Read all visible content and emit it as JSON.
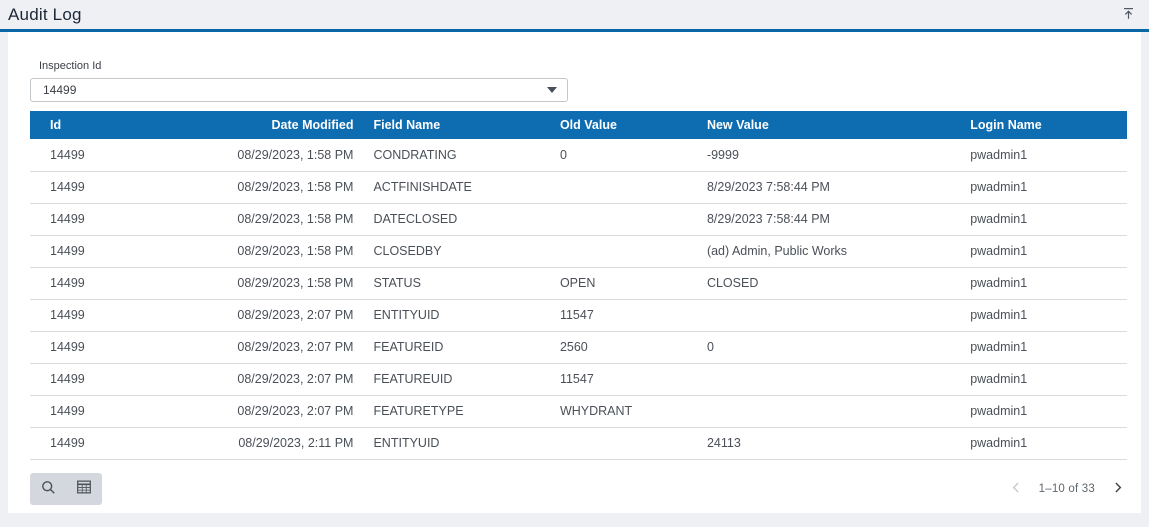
{
  "page": {
    "title": "Audit Log"
  },
  "filter": {
    "label": "Inspection Id",
    "value": "14499"
  },
  "table": {
    "columns": [
      {
        "key": "id",
        "label": "Id"
      },
      {
        "key": "date-modified",
        "label": "Date Modified"
      },
      {
        "key": "field-name",
        "label": "Field Name"
      },
      {
        "key": "old-value",
        "label": "Old Value"
      },
      {
        "key": "new-value",
        "label": "New Value"
      },
      {
        "key": "login-name",
        "label": "Login Name"
      }
    ],
    "rows": [
      [
        "14499",
        "08/29/2023, 1:58 PM",
        "CONDRATING",
        "0",
        "-9999",
        "pwadmin1"
      ],
      [
        "14499",
        "08/29/2023, 1:58 PM",
        "ACTFINISHDATE",
        "",
        "8/29/2023 7:58:44 PM",
        "pwadmin1"
      ],
      [
        "14499",
        "08/29/2023, 1:58 PM",
        "DATECLOSED",
        "",
        "8/29/2023 7:58:44 PM",
        "pwadmin1"
      ],
      [
        "14499",
        "08/29/2023, 1:58 PM",
        "CLOSEDBY",
        "",
        "(ad) Admin, Public Works",
        "pwadmin1"
      ],
      [
        "14499",
        "08/29/2023, 1:58 PM",
        "STATUS",
        "OPEN",
        "CLOSED",
        "pwadmin1"
      ],
      [
        "14499",
        "08/29/2023, 2:07 PM",
        "ENTITYUID",
        "11547",
        "",
        "pwadmin1"
      ],
      [
        "14499",
        "08/29/2023, 2:07 PM",
        "FEATUREID",
        "2560",
        "0",
        "pwadmin1"
      ],
      [
        "14499",
        "08/29/2023, 2:07 PM",
        "FEATUREUID",
        "11547",
        "",
        "pwadmin1"
      ],
      [
        "14499",
        "08/29/2023, 2:07 PM",
        "FEATURETYPE",
        "WHYDRANT",
        "",
        "pwadmin1"
      ],
      [
        "14499",
        "08/29/2023, 2:11 PM",
        "ENTITYUID",
        "",
        "24113",
        "pwadmin1"
      ]
    ]
  },
  "pagination": {
    "range_text": "1–10 of 33"
  },
  "colors": {
    "header_blue": "#0e6cb0",
    "accent_line": "#0a67a6",
    "page_bg": "#eef0f4",
    "row_border": "#d9dcdf"
  }
}
